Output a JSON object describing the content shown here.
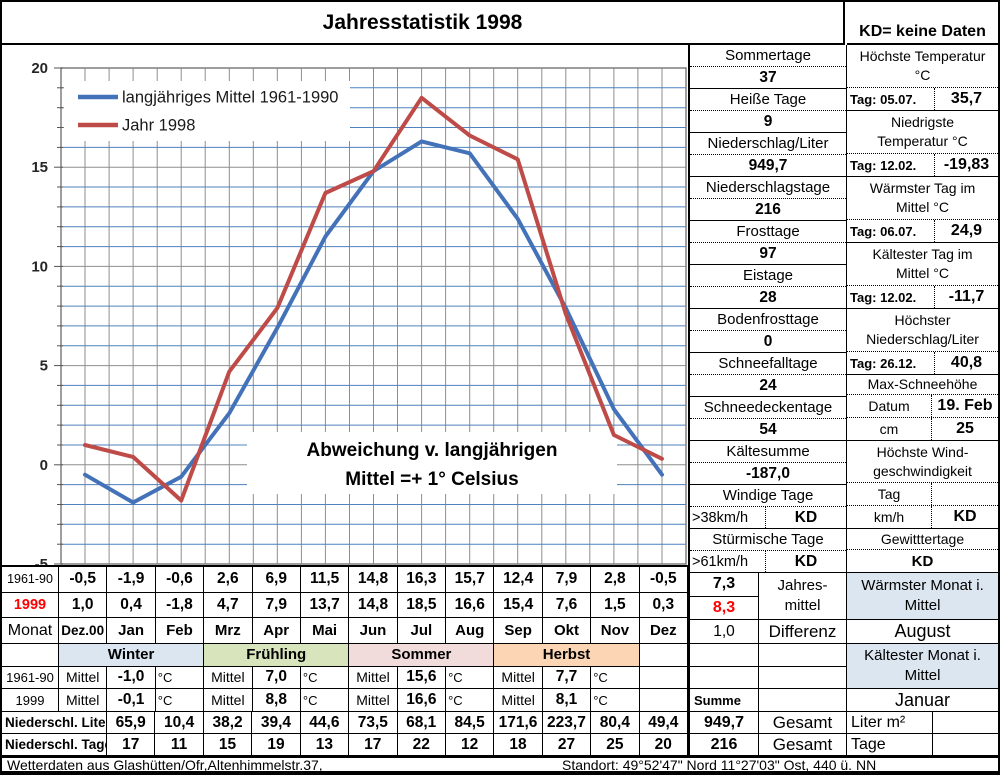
{
  "title": "Jahresstatistik 1998",
  "kd_note": "KD= keine Daten",
  "colors": {
    "series_mean": "#4472B9",
    "series_year": "#BE4B48",
    "grid_minor": "#4F81BD",
    "grid_major": "#8E8E8E",
    "plot_border": "#7F7F7F",
    "tick": "#555555",
    "axis_label": "#262626",
    "highlight_cell": "#DCE6F1",
    "accent_red": "#FF0000"
  },
  "chart_data": {
    "type": "line",
    "title": "Jahresstatistik 1998",
    "categories": [
      "Dez.00",
      "Jan",
      "Feb",
      "Mrz",
      "Apr",
      "Mai",
      "Jun",
      "Jul",
      "Aug",
      "Sep",
      "Okt",
      "Nov",
      "Dez"
    ],
    "series": [
      {
        "name": "langjähriges Mittel 1961-1990",
        "color": "#4472B9",
        "values": [
          -0.5,
          -1.9,
          -0.6,
          2.6,
          6.9,
          11.5,
          14.8,
          16.3,
          15.7,
          12.4,
          7.9,
          2.8,
          -0.5
        ]
      },
      {
        "name": "Jahr 1998",
        "color": "#BE4B48",
        "values": [
          1.0,
          0.4,
          -1.8,
          4.7,
          7.9,
          13.7,
          14.8,
          18.5,
          16.6,
          15.4,
          7.6,
          1.5,
          0.3
        ]
      }
    ],
    "ylim": [
      -5,
      20
    ],
    "y_major_step": 5,
    "y_minor_step": 1,
    "grid": "both",
    "legend_position": "top-left",
    "annotation": [
      "Abweichung v. langjährigen",
      "Mittel =+  1° Celsius"
    ]
  },
  "stats_left": [
    {
      "label": "Sommertage",
      "value": "37"
    },
    {
      "label": "Heiße Tage",
      "value": "9"
    },
    {
      "label": "Niederschlag/Liter",
      "value": "949,7"
    },
    {
      "label": "Niederschlagstage",
      "value": "216"
    },
    {
      "label": "Frosttage",
      "value": "97"
    },
    {
      "label": "Eistage",
      "value": "28"
    },
    {
      "label": "Bodenfrosttage",
      "value": "0"
    },
    {
      "label": "Schneefalltage",
      "value": "24"
    },
    {
      "label": "Schneedeckentage",
      "value": "54"
    },
    {
      "label": "Kältesumme",
      "value": "-187,0"
    },
    {
      "label": "Windige Tage",
      "sub_label": ">38km/h",
      "value": "KD"
    },
    {
      "label": "Stürmische Tage",
      "sub_label": ">61km/h",
      "value": "KD"
    }
  ],
  "stats_right": [
    {
      "title_lines": [
        "Höchste Temperatur",
        "°C"
      ],
      "rows": [
        {
          "label": "Tag: 05.07.",
          "value": "35,7"
        }
      ]
    },
    {
      "title_lines": [
        "Niedrigste",
        "Temperatur °C"
      ],
      "rows": [
        {
          "label": "Tag: 12.02.",
          "value": "-19,83"
        }
      ]
    },
    {
      "title_lines": [
        "Wärmster Tag im",
        "Mittel °C"
      ],
      "rows": [
        {
          "label": "Tag: 06.07.",
          "value": "24,9"
        }
      ]
    },
    {
      "title_lines": [
        "Kältester Tag im",
        "Mittel °C"
      ],
      "rows": [
        {
          "label": "Tag: 12.02.",
          "value": "-11,7"
        }
      ]
    },
    {
      "title_lines": [
        "Höchster",
        "Niederschlag/Liter"
      ],
      "rows": [
        {
          "label": "Tag: 26.12.",
          "value": "40,8"
        }
      ]
    },
    {
      "title_lines": [
        "Max-Schneehöhe"
      ],
      "rows": [
        {
          "label": "Datum",
          "value": "19. Feb"
        },
        {
          "label": "cm",
          "value": "25"
        }
      ]
    },
    {
      "title_lines": [
        "Höchste Wind-",
        "geschwindigkeit"
      ],
      "rows": [
        {
          "label": "Tag",
          "value": ""
        },
        {
          "label": "km/h",
          "value": "KD"
        }
      ]
    },
    {
      "title_lines": [
        "Gewitttertage"
      ],
      "rows": [
        {
          "label": "",
          "value": "KD",
          "full": true
        }
      ]
    }
  ],
  "monthly_table": {
    "rows": [
      {
        "label": "1961-90",
        "style": "small",
        "values": [
          "-0,5",
          "-1,9",
          "-0,6",
          "2,6",
          "6,9",
          "11,5",
          "14,8",
          "16,3",
          "15,7",
          "12,4",
          "7,9",
          "2,8",
          "-0,5"
        ]
      },
      {
        "label": "1999",
        "style": "red",
        "values": [
          "1,0",
          "0,4",
          "-1,8",
          "4,7",
          "7,9",
          "13,7",
          "14,8",
          "18,5",
          "16,6",
          "15,4",
          "7,6",
          "1,5",
          "0,3"
        ]
      },
      {
        "label": "Monat",
        "style": "monat",
        "values": [
          "Dez.00",
          "Jan",
          "Feb",
          "Mrz",
          "Apr",
          "Mai",
          "Jun",
          "Jul",
          "Aug",
          "Sep",
          "Okt",
          "Nov",
          "Dez"
        ]
      }
    ]
  },
  "annual": {
    "mean_long": "7,3",
    "mean_year": "8,3",
    "difference_value": "1,0",
    "mean_label_line1": "Jahres-",
    "mean_label_line2": "mittel",
    "difference_label": "Differenz",
    "warmest_label_line1": "Wärmster Monat i.",
    "warmest_label_line2": "Mittel",
    "warmest_value": "August",
    "coldest_label_line1": "Kältester Monat i.",
    "coldest_label_line2": "Mittel",
    "coldest_value": "Januar",
    "summe_label": "Summe"
  },
  "seasons": {
    "row_labels": [
      "1961-90",
      "1999"
    ],
    "mittel_label": "Mittel",
    "unit": "°C",
    "items": [
      {
        "name": "Winter",
        "color": "#DCE6F1",
        "mean_61_90": "-1,0",
        "mean_1999": "-0,1"
      },
      {
        "name": "Frühling",
        "color": "#D8E4BC",
        "mean_61_90": "7,0",
        "mean_1999": "8,8"
      },
      {
        "name": "Sommer",
        "color": "#F2DCDB",
        "mean_61_90": "15,6",
        "mean_1999": "16,6"
      },
      {
        "name": "Herbst",
        "color": "#FCD5B4",
        "mean_61_90": "7,7",
        "mean_1999": "8,1"
      }
    ]
  },
  "precipitation": {
    "liter_label": "Niederschl. Liter",
    "liter_values": [
      "65,9",
      "10,4",
      "38,2",
      "39,4",
      "44,6",
      "73,5",
      "68,1",
      "84,5",
      "171,6",
      "223,7",
      "80,4",
      "49,4"
    ],
    "liter_total": "949,7",
    "tage_label": "Niederschl. Tage",
    "tage_values": [
      "17",
      "11",
      "15",
      "19",
      "13",
      "17",
      "22",
      "12",
      "18",
      "27",
      "25",
      "20"
    ],
    "tage_total": "216",
    "gesamt_label": "Gesamt",
    "liter_unit": "Liter m²",
    "tage_unit": "Tage"
  },
  "footer": {
    "left": "Wetterdaten aus Glashütten/Ofr,Altenhimmelstr.37,",
    "right": "Standort: 49°52'47\" Nord   11°27'03\" Ost, 440 ü. NN"
  }
}
